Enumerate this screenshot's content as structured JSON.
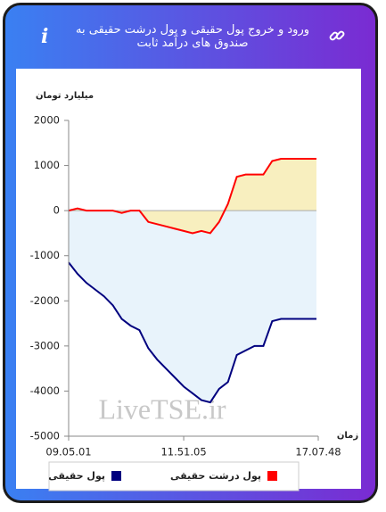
{
  "chart_data": {
    "type": "line",
    "title": "ورود و خروج پول حقیقی و پول درشت حقیقی به صندوق های درآمد ثابت",
    "y_label": "میلیارد تومان",
    "x_label": "زمان",
    "watermark": "LiveTSE.ir",
    "categories": [
      "09.05.01",
      null,
      null,
      null,
      null,
      null,
      null,
      null,
      null,
      null,
      null,
      null,
      null,
      "11.51.05",
      null,
      null,
      null,
      null,
      null,
      null,
      null,
      null,
      null,
      null,
      null,
      null,
      null,
      null,
      "17.07.48"
    ],
    "series": [
      {
        "name": "پول حقیقی",
        "color": "#00007f",
        "fill": "#e8f3fb",
        "values": [
          -1150,
          -1400,
          -1600,
          -1750,
          -1900,
          -2100,
          -2400,
          -2550,
          -2650,
          -3050,
          -3300,
          -3500,
          -3700,
          -3900,
          -4050,
          -4200,
          -4250,
          -3950,
          -3800,
          -3200,
          -3100,
          -3000,
          -3000,
          -2450,
          -2400,
          -2400,
          -2400,
          -2400,
          -2400
        ]
      },
      {
        "name": "پول درشت حقیقی",
        "color": "#ff0000",
        "fill": "#f8efbf",
        "values": [
          0,
          50,
          0,
          0,
          0,
          0,
          -50,
          0,
          0,
          -250,
          -300,
          -350,
          -400,
          -450,
          -500,
          -450,
          -500,
          -250,
          150,
          750,
          800,
          800,
          800,
          1100,
          1150,
          1150,
          1150,
          1150,
          1150
        ]
      }
    ],
    "ylim": [
      -5000,
      2000
    ],
    "yticks": [
      -5000,
      -4000,
      -3000,
      -2000,
      -1000,
      0,
      1000,
      2000
    ],
    "grid": false
  }
}
